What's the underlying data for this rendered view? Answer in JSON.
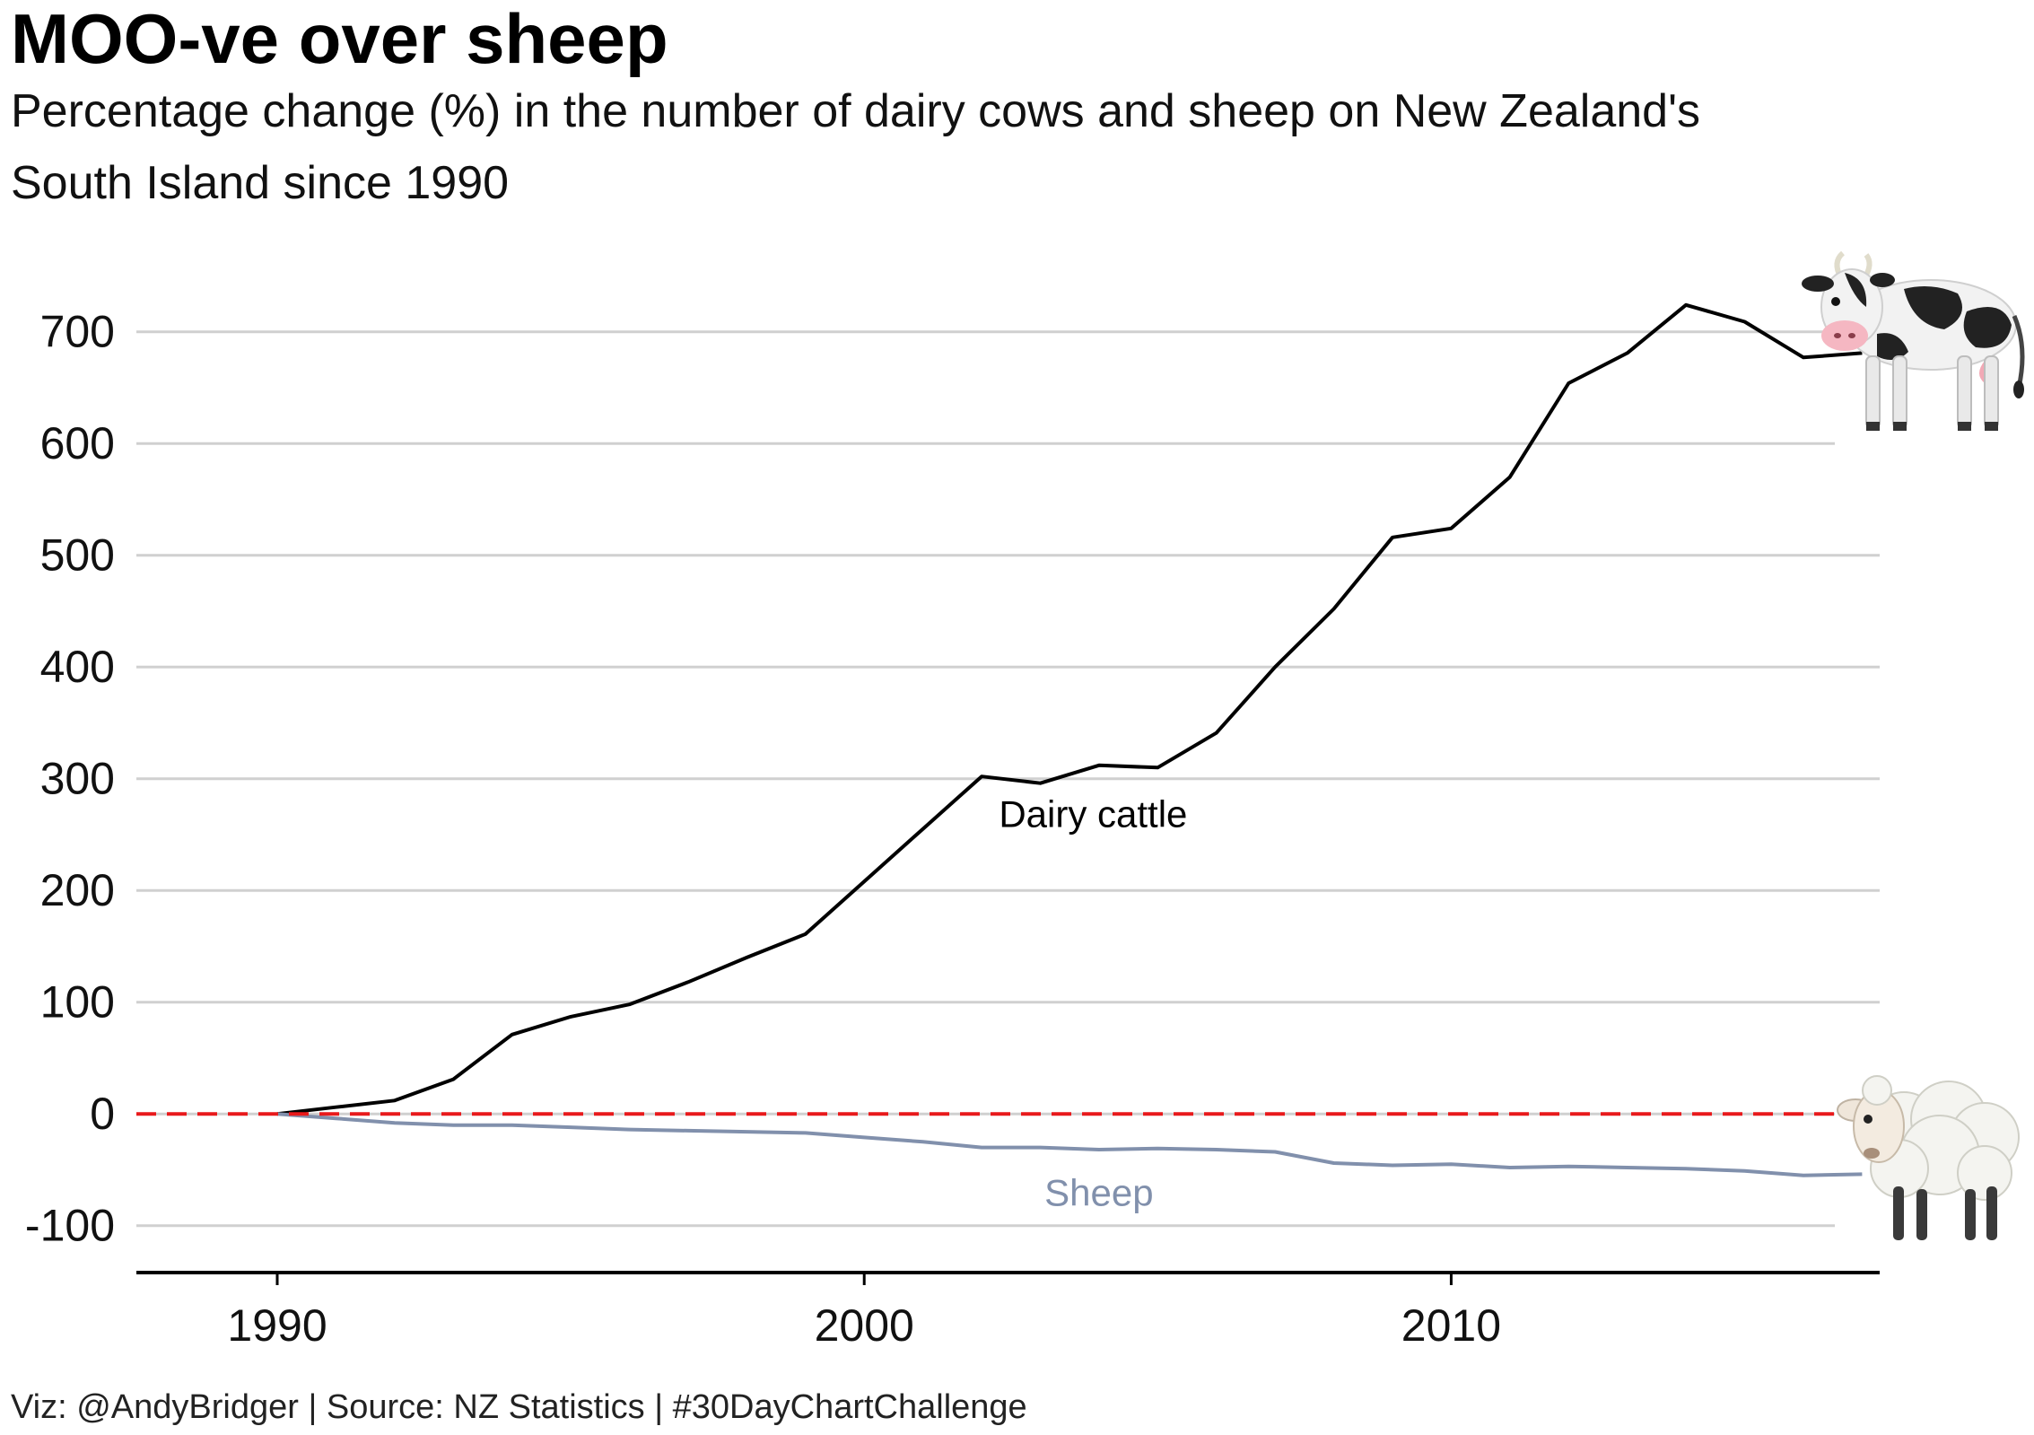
{
  "title": "MOO-ve over sheep",
  "subtitle_lines": [
    "Percentage change (%) in the number of dairy cows and sheep on New Zealand's",
    "South Island since 1990"
  ],
  "caption": "Viz: @AndyBridger | Source: NZ Statistics | #30DayChartChallenge",
  "chart_data": {
    "type": "line",
    "xlabel": "",
    "ylabel": "",
    "xlim": [
      1987.6,
      2017.3
    ],
    "ylim": [
      -142,
      760
    ],
    "x_ticks": [
      1990,
      2000,
      2010
    ],
    "x_tick_labels": [
      "1990",
      "2000",
      "2010"
    ],
    "y_ticks": [
      -100,
      0,
      100,
      200,
      300,
      400,
      500,
      600,
      700
    ],
    "y_tick_labels": [
      "-100",
      "0",
      "100",
      "200",
      "300",
      "400",
      "500",
      "600",
      "700"
    ],
    "grid": "horizontal",
    "reference_line": {
      "y": 0,
      "color": "#e8191b",
      "style": "dashed"
    },
    "x": [
      1990,
      1991,
      1992,
      1993,
      1994,
      1995,
      1996,
      1997,
      1998,
      1999,
      2000,
      2001,
      2002,
      2003,
      2004,
      2005,
      2006,
      2007,
      2008,
      2009,
      2010,
      2011,
      2012,
      2013,
      2014,
      2015,
      2016,
      2017
    ],
    "series": [
      {
        "name": "Dairy cattle",
        "color": "#000000",
        "label_at": [
          2003.9,
          268
        ],
        "icon": "cow-icon",
        "values": [
          0,
          6,
          12,
          31,
          71,
          87,
          98,
          118,
          140,
          161,
          208,
          255,
          302,
          296,
          312,
          310,
          341,
          400,
          452,
          516,
          524,
          570,
          654,
          681,
          724,
          709,
          677,
          681
        ]
      },
      {
        "name": "Sheep",
        "color": "#8190ac",
        "label_at": [
          2004,
          -71
        ],
        "icon": "sheep-icon",
        "values": [
          0,
          -4,
          -8,
          -10,
          -10,
          -12,
          -14,
          -15,
          -16,
          -17,
          -21,
          -25,
          -30,
          -30,
          -32,
          -31,
          -32,
          -34,
          -44,
          -46,
          -45,
          -48,
          -47,
          -48,
          -49,
          -51,
          -55,
          -54
        ]
      }
    ]
  }
}
